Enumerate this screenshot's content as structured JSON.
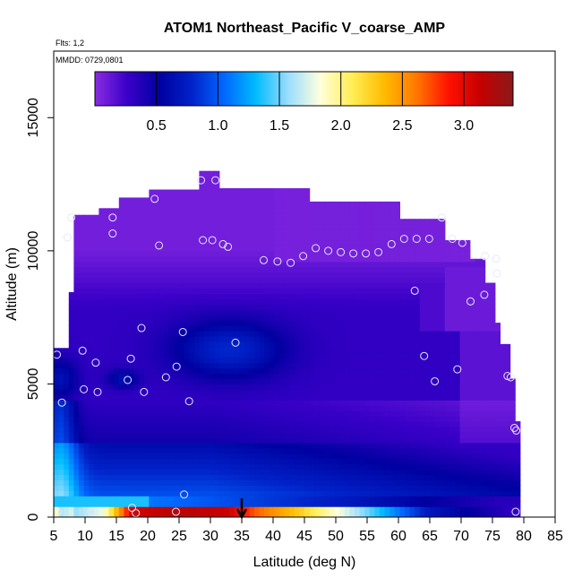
{
  "chart_data": {
    "type": "heatmap",
    "title": "ATOM1 Northeast_Pacific V_coarse_AMP",
    "flights_label": "Flts: 1,2",
    "dates_label": "MMDD: 0729,0801",
    "xlabel": "Latitude (deg N)",
    "ylabel": "Altitude (m)",
    "xlim": [
      5,
      85
    ],
    "ylim": [
      0,
      17500
    ],
    "x_ticks": [
      "5",
      "10",
      "15",
      "20",
      "25",
      "30",
      "35",
      "40",
      "45",
      "50",
      "55",
      "60",
      "65",
      "70",
      "75",
      "80",
      "85"
    ],
    "y_ticks": [
      "0",
      "5000",
      "10000",
      "15000"
    ],
    "colorbar": {
      "range": [
        0,
        3.4
      ],
      "ticks": [
        "0.5",
        "1.0",
        "1.5",
        "2.0",
        "2.5",
        "3.0"
      ],
      "colors": [
        "#8a2be2",
        "#3a00c8",
        "#0000a0",
        "#0022c8",
        "#0066ff",
        "#00bbff",
        "#99ddff",
        "#ffffdd",
        "#ffee55",
        "#ffbb00",
        "#ff7700",
        "#ff1100",
        "#c40000",
        "#8b1a1a"
      ]
    },
    "arrow_latitude": 35,
    "points": [
      {
        "lat": 5.5,
        "alt": 6100
      },
      {
        "lat": 6.3,
        "alt": 4300
      },
      {
        "lat": 7.2,
        "alt": 10500
      },
      {
        "lat": 7.8,
        "alt": 11250
      },
      {
        "lat": 9.6,
        "alt": 6250
      },
      {
        "lat": 9.8,
        "alt": 4800
      },
      {
        "lat": 11.7,
        "alt": 5800
      },
      {
        "lat": 12,
        "alt": 4700
      },
      {
        "lat": 14.4,
        "alt": 11250
      },
      {
        "lat": 14.4,
        "alt": 10650
      },
      {
        "lat": 16.8,
        "alt": 5150
      },
      {
        "lat": 17.3,
        "alt": 5950
      },
      {
        "lat": 19,
        "alt": 7100
      },
      {
        "lat": 19.4,
        "alt": 4700
      },
      {
        "lat": 21.1,
        "alt": 11950
      },
      {
        "lat": 21.8,
        "alt": 10200
      },
      {
        "lat": 22.9,
        "alt": 5250
      },
      {
        "lat": 24.6,
        "alt": 5650
      },
      {
        "lat": 25.6,
        "alt": 6950
      },
      {
        "lat": 26.6,
        "alt": 4350
      },
      {
        "lat": 28.5,
        "alt": 12650
      },
      {
        "lat": 28.8,
        "alt": 10400
      },
      {
        "lat": 30.3,
        "alt": 10400
      },
      {
        "lat": 30.8,
        "alt": 12650
      },
      {
        "lat": 32,
        "alt": 10250
      },
      {
        "lat": 32.8,
        "alt": 10150
      },
      {
        "lat": 34,
        "alt": 6550
      },
      {
        "lat": 38.5,
        "alt": 9650
      },
      {
        "lat": 40.7,
        "alt": 9600
      },
      {
        "lat": 42.8,
        "alt": 9550
      },
      {
        "lat": 44.8,
        "alt": 9800
      },
      {
        "lat": 46.8,
        "alt": 10100
      },
      {
        "lat": 48.8,
        "alt": 10000
      },
      {
        "lat": 50.8,
        "alt": 9950
      },
      {
        "lat": 52.8,
        "alt": 9900
      },
      {
        "lat": 54.8,
        "alt": 9900
      },
      {
        "lat": 56.8,
        "alt": 9950
      },
      {
        "lat": 58.9,
        "alt": 10250
      },
      {
        "lat": 60.9,
        "alt": 10450
      },
      {
        "lat": 62.9,
        "alt": 10450
      },
      {
        "lat": 62.6,
        "alt": 8500
      },
      {
        "lat": 64.1,
        "alt": 6050
      },
      {
        "lat": 64.9,
        "alt": 10450
      },
      {
        "lat": 65.8,
        "alt": 5100
      },
      {
        "lat": 66.9,
        "alt": 11250
      },
      {
        "lat": 68.6,
        "alt": 10450
      },
      {
        "lat": 69.4,
        "alt": 5550
      },
      {
        "lat": 70.2,
        "alt": 10300
      },
      {
        "lat": 71.5,
        "alt": 8100
      },
      {
        "lat": 73.7,
        "alt": 8350
      },
      {
        "lat": 73.8,
        "alt": 9800
      },
      {
        "lat": 75.6,
        "alt": 9700
      },
      {
        "lat": 75.7,
        "alt": 9150
      },
      {
        "lat": 77.4,
        "alt": 5300
      },
      {
        "lat": 77.9,
        "alt": 5250
      },
      {
        "lat": 78.5,
        "alt": 3350
      },
      {
        "lat": 78.8,
        "alt": 3250
      },
      {
        "lat": 78.7,
        "alt": 200
      },
      {
        "lat": 5.6,
        "alt": 200
      },
      {
        "lat": 11,
        "alt": 200
      },
      {
        "lat": 17.5,
        "alt": 350
      },
      {
        "lat": 18.1,
        "alt": 150
      },
      {
        "lat": 24.5,
        "alt": 200
      },
      {
        "lat": 25.8,
        "alt": 850
      }
    ]
  }
}
